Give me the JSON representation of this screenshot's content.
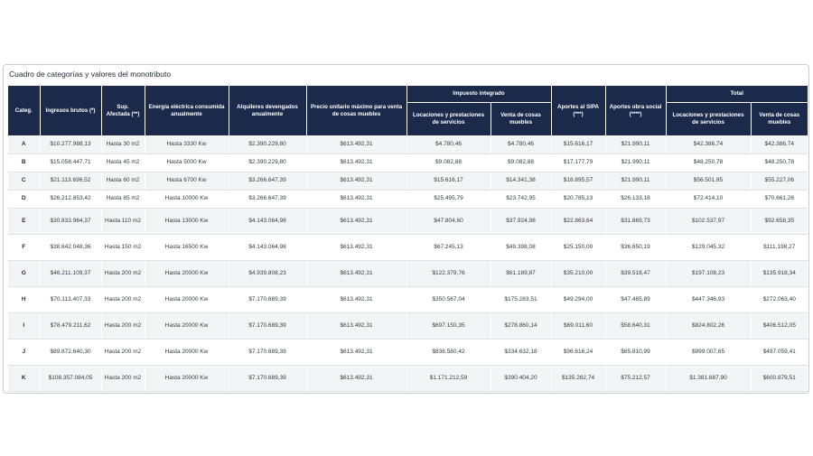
{
  "title": "Cuadro de categorías y valores del monotributo",
  "headers": {
    "categ": "Categ.",
    "ingresos": "Ingresos brutos (*)",
    "sup": "Sup. Afectada (**)",
    "energia": "Energía eléctrica consumida anualmente",
    "alquileres": "Alquileres devengados anualmente",
    "precio": "Precio unitario máximo para venta de cosas muebles",
    "impuesto_group": "Impuesto integrado",
    "impuesto_locaciones": "Locaciones y prestaciones de servicios",
    "impuesto_venta": "Venta de cosas muebles",
    "sipa": "Aportes al SIPA (***)",
    "obra_social": "Aportes obra social (****)",
    "total_group": "Total",
    "total_locaciones": "Locaciones y prestaciones de servicios",
    "total_venta": "Venta de cosas muebles"
  },
  "rows": [
    {
      "cat": "A",
      "ingresos": "$10.277.988,13",
      "sup": "Hasta 30 m2",
      "energia": "Hasta 3330 Kw",
      "alquileres": "$2.390.229,80",
      "precio": "$613.492,31",
      "imp_loc": "$4.780,46",
      "imp_venta": "$4.780,46",
      "sipa": "$15.616,17",
      "obra": "$21.990,11",
      "tot_loc": "$42.386,74",
      "tot_venta": "$42.386,74"
    },
    {
      "cat": "B",
      "ingresos": "$15.058.447,71",
      "sup": "Hasta 45 m2",
      "energia": "Hasta 5000 Kw",
      "alquileres": "$2.390.229,80",
      "precio": "$613.492,31",
      "imp_loc": "$9.082,88",
      "imp_venta": "$9.082,88",
      "sipa": "$17.177,79",
      "obra": "$21.990,11",
      "tot_loc": "$48.250,78",
      "tot_venta": "$48.250,78"
    },
    {
      "cat": "C",
      "ingresos": "$21.113.696,52",
      "sup": "Hasta 60 m2",
      "energia": "Hasta 6700 Kw",
      "alquileres": "$3.266.647,39",
      "precio": "$613.492,31",
      "imp_loc": "$15.616,17",
      "imp_venta": "$14.341,38",
      "sipa": "$18.895,57",
      "obra": "$21.990,11",
      "tot_loc": "$56.501,85",
      "tot_venta": "$55.227,06"
    },
    {
      "cat": "D",
      "ingresos": "$26.212.853,42",
      "sup": "Hasta 85 m2",
      "energia": "Hasta 10000 Kw",
      "alquileres": "$3.266.647,39",
      "precio": "$613.492,31",
      "imp_loc": "$25.495,79",
      "imp_venta": "$23.742,95",
      "sipa": "$20.785,13",
      "obra": "$26.133,18",
      "tot_loc": "$72.414,10",
      "tot_venta": "$70.661,26"
    },
    {
      "cat": "E",
      "ingresos": "$30.833.964,37",
      "sup": "Hasta 110 m2",
      "energia": "Hasta 13000 Kw",
      "alquileres": "$4.143.064,98",
      "precio": "$613.492,31",
      "imp_loc": "$47.804,60",
      "imp_venta": "$37.924,98",
      "sipa": "$22.863,64",
      "obra": "$31.869,73",
      "tot_loc": "$102.537,97",
      "tot_venta": "$92.658,35"
    },
    {
      "cat": "F",
      "ingresos": "$38.642.048,36",
      "sup": "Hasta 150 m2",
      "energia": "Hasta 16500 Kw",
      "alquileres": "$4.143.064,98",
      "precio": "$613.492,31",
      "imp_loc": "$67.245,13",
      "imp_venta": "$49.398,08",
      "sipa": "$25.150,00",
      "obra": "$36.650,19",
      "tot_loc": "$129.045,32",
      "tot_venta": "$111.198,27"
    },
    {
      "cat": "G",
      "ingresos": "$46.211.109,37",
      "sup": "Hasta 200 m2",
      "energia": "Hasta 20000 Kw",
      "alquileres": "$4.939.808,23",
      "precio": "$613.492,31",
      "imp_loc": "$122.379,76",
      "imp_venta": "$61.189,87",
      "sipa": "$35.210,00",
      "obra": "$39.518,47",
      "tot_loc": "$197.108,23",
      "tot_venta": "$135.918,34"
    },
    {
      "cat": "H",
      "ingresos": "$70.113.407,33",
      "sup": "Hasta 200 m2",
      "energia": "Hasta 20000 Kw",
      "alquileres": "$7.170.689,39",
      "precio": "$613.492,31",
      "imp_loc": "$350.567,04",
      "imp_venta": "$175.283,51",
      "sipa": "$49.294,00",
      "obra": "$47.485,89",
      "tot_loc": "$447.346,93",
      "tot_venta": "$272.063,40"
    },
    {
      "cat": "I",
      "ingresos": "$78.479.211,62",
      "sup": "Hasta 200 m2",
      "energia": "Hasta 20000 Kw",
      "alquileres": "$7.170.689,39",
      "precio": "$613.492,31",
      "imp_loc": "$697.150,35",
      "imp_venta": "$278.860,14",
      "sipa": "$69.011,60",
      "obra": "$58.640,31",
      "tot_loc": "$824.802,26",
      "tot_venta": "$406.512,05"
    },
    {
      "cat": "J",
      "ingresos": "$89.872.640,30",
      "sup": "Hasta 200 m2",
      "energia": "Hasta 20000 Kw",
      "alquileres": "$7.170.689,39",
      "precio": "$613.492,31",
      "imp_loc": "$836.580,42",
      "imp_venta": "$334.632,18",
      "sipa": "$96.616,24",
      "obra": "$65.810,99",
      "tot_loc": "$999.007,65",
      "tot_venta": "$497.059,41"
    },
    {
      "cat": "K",
      "ingresos": "$108.357.084,05",
      "sup": "Hasta 200 m2",
      "energia": "Hasta 20000 Kw",
      "alquileres": "$7.170.689,39",
      "precio": "$613.492,31",
      "imp_loc": "$1.171.212,59",
      "imp_venta": "$390.404,20",
      "sipa": "$135.262,74",
      "obra": "$75.212,57",
      "tot_loc": "$1.381.687,90",
      "tot_venta": "$600.879,51"
    }
  ]
}
